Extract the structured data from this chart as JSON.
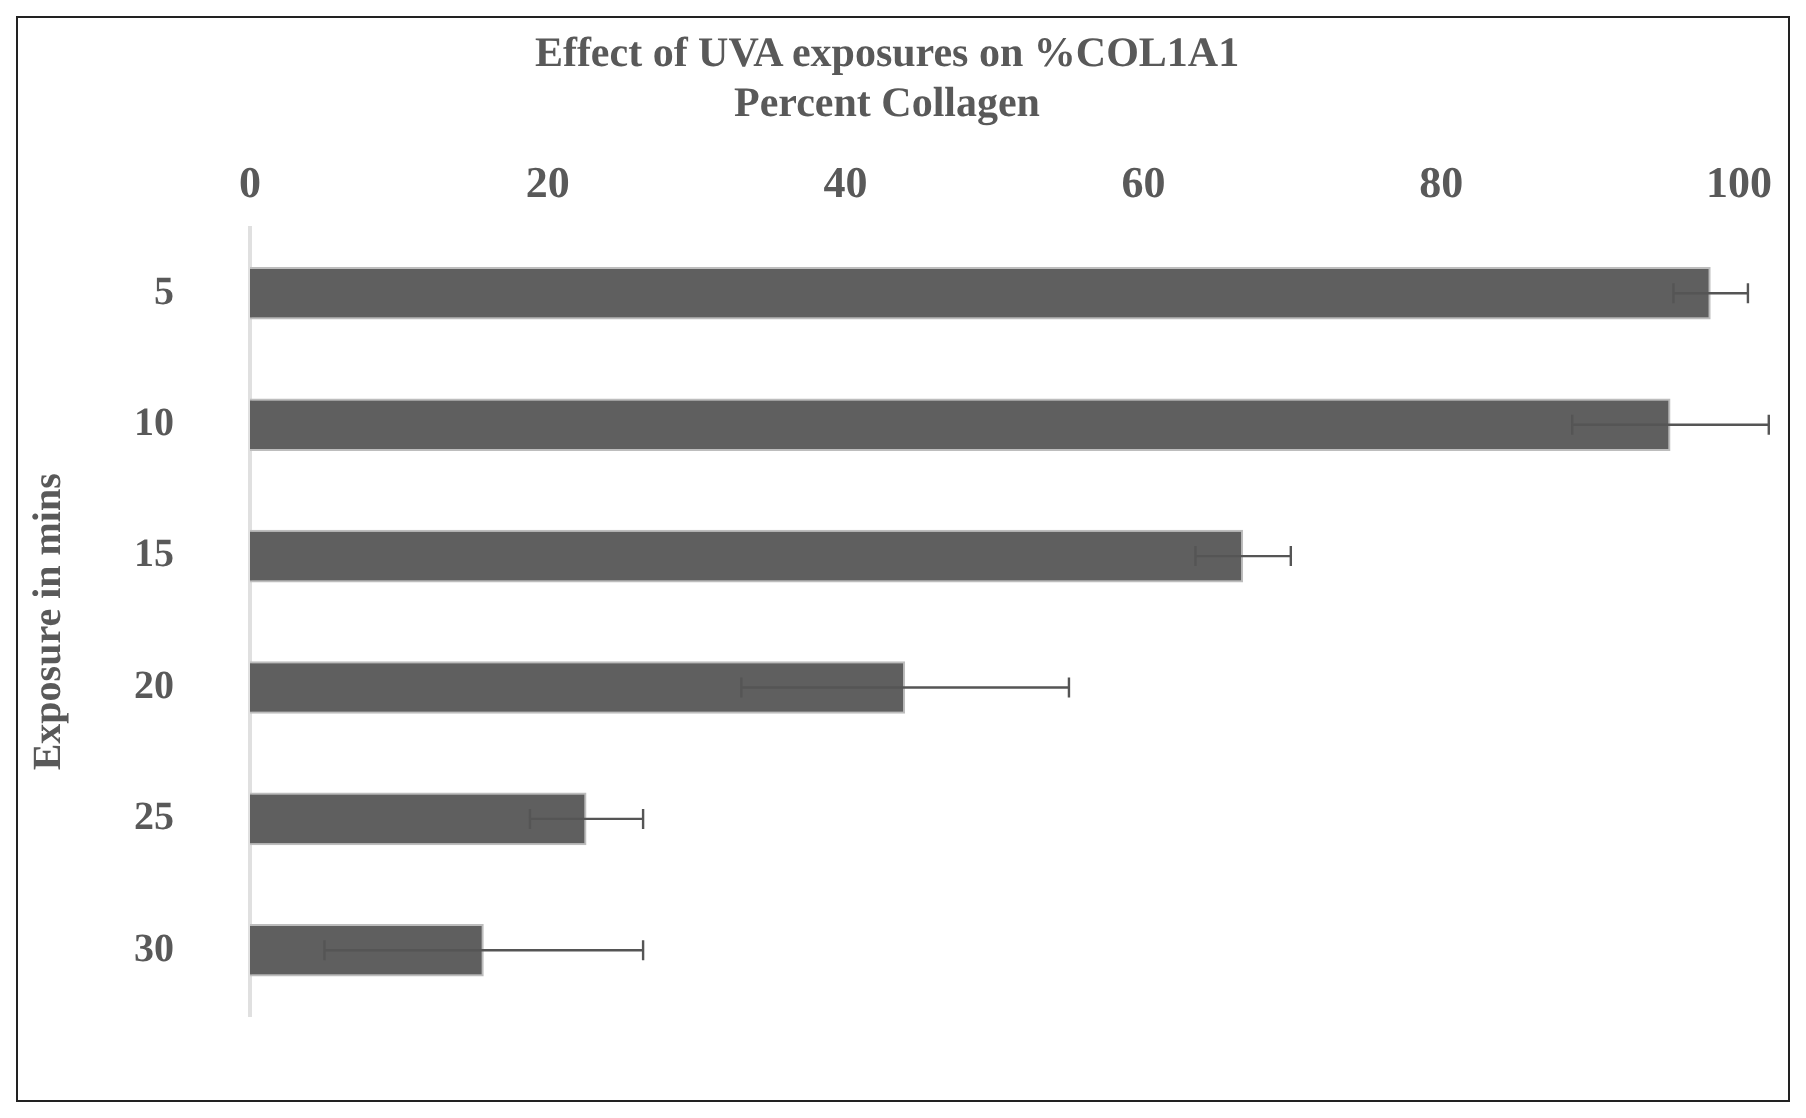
{
  "chart_data": {
    "type": "bar",
    "orientation": "horizontal",
    "title": [
      "Effect of UVA exposures on %COL1A1",
      "Percent Collagen"
    ],
    "ylabel": "Exposure in mins",
    "categories": [
      "5",
      "10",
      "15",
      "20",
      "25",
      "30"
    ],
    "values": [
      98.1,
      95.4,
      66.7,
      44.0,
      22.6,
      15.7
    ],
    "errors": [
      2.5,
      6.6,
      3.2,
      11.0,
      3.8,
      10.7
    ],
    "color": "#5f5f5f",
    "xlim": [
      0,
      100
    ],
    "xticks": [
      0,
      20,
      40,
      60,
      80,
      100
    ],
    "grid": false,
    "legend": false
  }
}
